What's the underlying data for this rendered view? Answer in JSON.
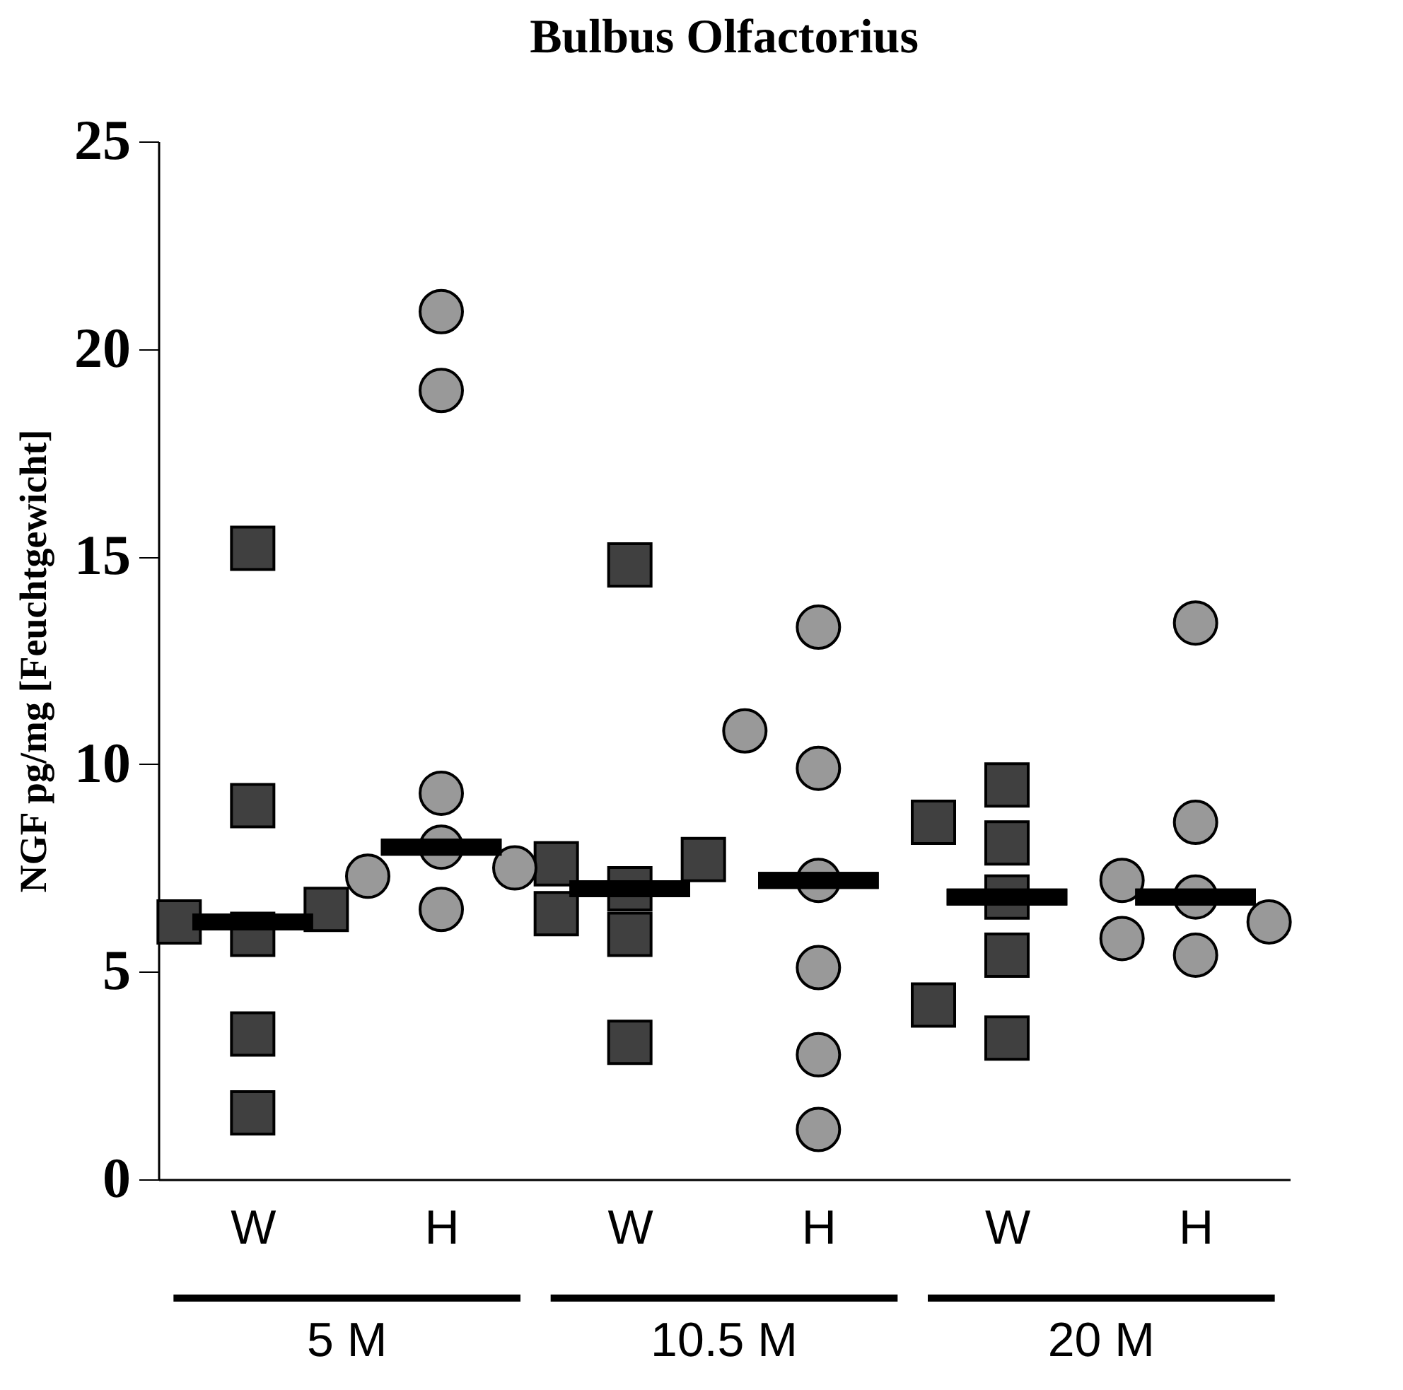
{
  "chart_data": {
    "type": "scatter",
    "title": "Bulbus Olfactorius",
    "ylabel": "NGF pg/mg [Feuchtgewicht]",
    "categories": [
      "W",
      "H",
      "W",
      "H",
      "W",
      "H"
    ],
    "ylim": [
      0,
      25
    ],
    "yticks": [
      0,
      5,
      10,
      15,
      20,
      25
    ],
    "grid": false,
    "annotations": [
      "5 M",
      "10.5 M",
      "20 M"
    ],
    "series": [
      {
        "color": "#404040",
        "marker": "square",
        "values": [
          15.2,
          null,
          14.8,
          null,
          9.5,
          null
        ]
      },
      {
        "color": "#404040",
        "marker": "square",
        "values": [
          9.0,
          null,
          7.7,
          null,
          8.6,
          null
        ]
      },
      {
        "color": "#404040",
        "marker": "square",
        "values": [
          6.5,
          null,
          7.6,
          null,
          8.1,
          null
        ]
      },
      {
        "color": "#404040",
        "marker": "square",
        "values": [
          6.2,
          null,
          7.0,
          null,
          6.8,
          null
        ]
      },
      {
        "color": "#404040",
        "marker": "square",
        "values": [
          5.9,
          null,
          6.4,
          null,
          5.4,
          null
        ]
      },
      {
        "color": "#404040",
        "marker": "square",
        "values": [
          3.5,
          null,
          5.9,
          null,
          4.2,
          null
        ]
      },
      {
        "color": "#404040",
        "marker": "square",
        "values": [
          1.6,
          null,
          3.3,
          null,
          3.4,
          null
        ]
      },
      {
        "color": "#999999",
        "marker": "circle",
        "values": [
          null,
          20.9,
          null,
          13.3,
          null,
          13.4
        ]
      },
      {
        "color": "#999999",
        "marker": "circle",
        "values": [
          null,
          19.0,
          null,
          10.8,
          null,
          8.6
        ]
      },
      {
        "color": "#999999",
        "marker": "circle",
        "values": [
          null,
          9.3,
          null,
          9.9,
          null,
          7.2
        ]
      },
      {
        "color": "#999999",
        "marker": "circle",
        "values": [
          null,
          8.0,
          null,
          7.2,
          null,
          6.8
        ]
      },
      {
        "color": "#999999",
        "marker": "circle",
        "values": [
          null,
          7.5,
          null,
          5.1,
          null,
          6.2
        ]
      },
      {
        "color": "#999999",
        "marker": "circle",
        "values": [
          null,
          7.3,
          null,
          3.0,
          null,
          5.8
        ]
      },
      {
        "color": "#999999",
        "marker": "circle",
        "values": [
          null,
          6.5,
          null,
          1.2,
          null,
          5.4
        ]
      },
      {
        "type": "box",
        "color": "#000000",
        "boxes": [
          {
            "low": 6.2,
            "q1": 6.2,
            "median": 6.2,
            "q3": 6.2,
            "high": 6.2
          },
          {
            "low": 8.0,
            "q1": 8.0,
            "median": 8.0,
            "q3": 8.0,
            "high": 8.0
          },
          {
            "low": 7.0,
            "q1": 7.0,
            "median": 7.0,
            "q3": 7.0,
            "high": 7.0
          },
          {
            "low": 7.2,
            "q1": 7.2,
            "median": 7.2,
            "q3": 7.2,
            "high": 7.2
          },
          {
            "low": 6.8,
            "q1": 6.8,
            "median": 6.8,
            "q3": 6.8,
            "high": 6.8
          },
          {
            "low": 6.8,
            "q1": 6.8,
            "median": 6.8,
            "q3": 6.8,
            "high": 6.8
          }
        ]
      }
    ]
  }
}
